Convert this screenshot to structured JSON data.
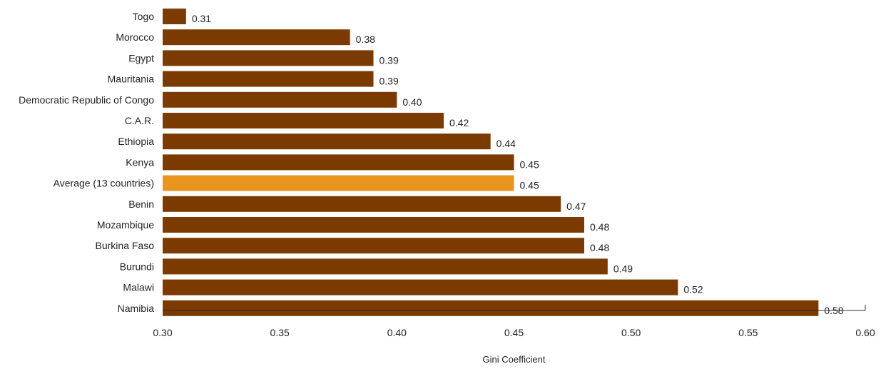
{
  "chart_data": {
    "type": "bar",
    "orientation": "horizontal",
    "categories": [
      "Togo",
      "Morocco",
      "Egypt",
      "Mauritania",
      "Democratic Republic of Congo",
      "C.A.R.",
      "Ethiopia",
      "Kenya",
      "Average (13 countries)",
      "Benin",
      "Mozambique",
      "Burkina Faso",
      "Burundi",
      "Malawi",
      "Namibia"
    ],
    "values": [
      0.31,
      0.38,
      0.39,
      0.39,
      0.4,
      0.42,
      0.44,
      0.45,
      0.45,
      0.47,
      0.48,
      0.48,
      0.49,
      0.52,
      0.58
    ],
    "value_labels": [
      "0.31",
      "0.38",
      "0.39",
      "0.39",
      "0.40",
      "0.42",
      "0.44",
      "0.45",
      "0.45",
      "0.47",
      "0.48",
      "0.48",
      "0.49",
      "0.52",
      "0.58"
    ],
    "highlight_index": 8,
    "xlabel": "Gini Coefficient",
    "xlim": [
      0.3,
      0.6
    ],
    "xticks": [
      0.3,
      0.35,
      0.4,
      0.45,
      0.5,
      0.55,
      0.6
    ],
    "xtick_labels": [
      "0.30",
      "0.35",
      "0.40",
      "0.45",
      "0.50",
      "0.55",
      "0.60"
    ],
    "grid": false,
    "legend": "none",
    "colors": {
      "bar": "#7a3a00",
      "highlight": "#e8951e",
      "axis": "#333333",
      "text": "#222222"
    }
  }
}
